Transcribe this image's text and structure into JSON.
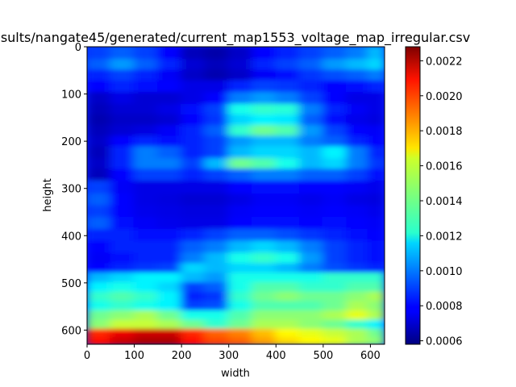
{
  "chart_data": {
    "type": "heatmap",
    "title": "sults/nangate45/generated/current_map1553_voltage_map_irregular.csv",
    "xlabel": "width",
    "ylabel": "height",
    "xlim": [
      0,
      630
    ],
    "ylim": [
      630,
      0
    ],
    "x_ticks": [
      "0",
      "100",
      "200",
      "300",
      "400",
      "500",
      "600"
    ],
    "y_ticks": [
      "0",
      "100",
      "200",
      "300",
      "400",
      "500",
      "600"
    ],
    "colormap": "jet",
    "colorbar": {
      "min": 0.00058,
      "max": 0.00228,
      "ticks": [
        "0.0006",
        "0.0008",
        "0.0010",
        "0.0012",
        "0.0014",
        "0.0016",
        "0.0018",
        "0.0020",
        "0.0022"
      ]
    },
    "grid": false,
    "x_centers": [
      25,
      75,
      125,
      175,
      225,
      275,
      325,
      375,
      425,
      475,
      525,
      575,
      615
    ],
    "y_centers": [
      15,
      40,
      60,
      85,
      110,
      135,
      155,
      180,
      200,
      225,
      250,
      270,
      300,
      325,
      350,
      375,
      400,
      425,
      450,
      470,
      490,
      510,
      530,
      550,
      570,
      590,
      608,
      624
    ],
    "values": [
      [
        0.0009,
        0.00095,
        0.0009,
        0.0008,
        0.00068,
        0.00065,
        0.0007,
        0.0008,
        0.00085,
        0.0009,
        0.00095,
        0.001,
        0.0011
      ],
      [
        0.00095,
        0.00105,
        0.00095,
        0.00085,
        0.00072,
        0.00068,
        0.00072,
        0.00085,
        0.0009,
        0.00095,
        0.00105,
        0.0011,
        0.00115
      ],
      [
        0.00085,
        0.0009,
        0.00085,
        0.00078,
        0.0007,
        0.00066,
        0.0007,
        0.00078,
        0.00082,
        0.00088,
        0.00092,
        0.00095,
        0.001
      ],
      [
        0.0008,
        0.00085,
        0.00082,
        0.0008,
        0.00075,
        0.00075,
        0.00085,
        0.0009,
        0.00088,
        0.00085,
        0.0008,
        0.00082,
        0.00085
      ],
      [
        0.0007,
        0.00075,
        0.00072,
        0.00072,
        0.00075,
        0.0008,
        0.001,
        0.00105,
        0.001,
        0.0009,
        0.0008,
        0.00075,
        0.00075
      ],
      [
        0.00068,
        0.00072,
        0.00072,
        0.00075,
        0.00082,
        0.0009,
        0.00125,
        0.0013,
        0.00128,
        0.001,
        0.00085,
        0.00078,
        0.00075
      ],
      [
        0.00066,
        0.0007,
        0.0007,
        0.00072,
        0.0008,
        0.00088,
        0.00115,
        0.0012,
        0.00118,
        0.00095,
        0.00082,
        0.00076,
        0.00074
      ],
      [
        0.00068,
        0.00072,
        0.00074,
        0.00078,
        0.00085,
        0.00095,
        0.0013,
        0.0014,
        0.00135,
        0.00105,
        0.0009,
        0.0008,
        0.00078
      ],
      [
        0.0007,
        0.0008,
        0.00085,
        0.00082,
        0.00085,
        0.0009,
        0.00105,
        0.0011,
        0.0011,
        0.001,
        0.00095,
        0.00085,
        0.0008
      ],
      [
        0.00068,
        0.00085,
        0.001,
        0.00095,
        0.00085,
        0.0009,
        0.0011,
        0.00115,
        0.00115,
        0.0011,
        0.0012,
        0.001,
        0.00085
      ],
      [
        0.0007,
        0.00085,
        0.001,
        0.001,
        0.0009,
        0.0011,
        0.0014,
        0.00135,
        0.00125,
        0.0011,
        0.00115,
        0.001,
        0.00088
      ],
      [
        0.00068,
        0.0008,
        0.0009,
        0.0009,
        0.00085,
        0.0009,
        0.00095,
        0.001,
        0.001,
        0.00095,
        0.00095,
        0.0009,
        0.00082
      ],
      [
        0.0009,
        0.00078,
        0.00075,
        0.00075,
        0.00075,
        0.00075,
        0.0008,
        0.00082,
        0.00082,
        0.0008,
        0.0008,
        0.00078,
        0.00076
      ],
      [
        0.00095,
        0.0008,
        0.00075,
        0.00074,
        0.00072,
        0.00072,
        0.00075,
        0.00078,
        0.00078,
        0.00076,
        0.00078,
        0.00075,
        0.00074
      ],
      [
        0.0009,
        0.0008,
        0.00076,
        0.00075,
        0.00074,
        0.00074,
        0.00078,
        0.0008,
        0.0008,
        0.00078,
        0.0008,
        0.00078,
        0.00076
      ],
      [
        0.00095,
        0.00082,
        0.00078,
        0.00076,
        0.00075,
        0.00075,
        0.0008,
        0.00082,
        0.00082,
        0.0008,
        0.00082,
        0.0008,
        0.00078
      ],
      [
        0.00085,
        0.00085,
        0.00082,
        0.00082,
        0.00085,
        0.0009,
        0.00095,
        0.00095,
        0.00092,
        0.00088,
        0.00085,
        0.00082,
        0.0008
      ],
      [
        0.0008,
        0.00085,
        0.00085,
        0.00085,
        0.00095,
        0.001,
        0.0011,
        0.00115,
        0.0011,
        0.001,
        0.0009,
        0.00085,
        0.00082
      ],
      [
        0.00078,
        0.00082,
        0.00085,
        0.00085,
        0.001,
        0.0011,
        0.00125,
        0.0013,
        0.00125,
        0.00105,
        0.0009,
        0.00085,
        0.00082
      ],
      [
        0.0008,
        0.00085,
        0.00088,
        0.0009,
        0.00115,
        0.0011,
        0.00115,
        0.00115,
        0.0011,
        0.001,
        0.00092,
        0.00088,
        0.00085
      ],
      [
        0.0011,
        0.00115,
        0.0012,
        0.0012,
        0.0011,
        0.00105,
        0.00125,
        0.00125,
        0.00125,
        0.00125,
        0.0013,
        0.0013,
        0.0013
      ],
      [
        0.0012,
        0.00125,
        0.0012,
        0.00115,
        0.0009,
        0.00095,
        0.00125,
        0.00135,
        0.00135,
        0.0013,
        0.0013,
        0.00135,
        0.00135
      ],
      [
        0.0013,
        0.00135,
        0.0013,
        0.0012,
        0.00085,
        0.00088,
        0.0013,
        0.0014,
        0.00145,
        0.0014,
        0.0014,
        0.00145,
        0.0015
      ],
      [
        0.00125,
        0.0013,
        0.00125,
        0.0012,
        0.0009,
        0.00092,
        0.00125,
        0.00135,
        0.00135,
        0.00135,
        0.0014,
        0.0015,
        0.00145
      ],
      [
        0.0014,
        0.00145,
        0.0015,
        0.0014,
        0.00125,
        0.00125,
        0.00135,
        0.00145,
        0.00145,
        0.00145,
        0.0015,
        0.0016,
        0.0015
      ],
      [
        0.00145,
        0.00155,
        0.00155,
        0.0015,
        0.0014,
        0.0013,
        0.0014,
        0.0015,
        0.0015,
        0.00145,
        0.0014,
        0.0013,
        0.0012
      ],
      [
        0.002,
        0.0021,
        0.00215,
        0.00215,
        0.002,
        0.0019,
        0.00185,
        0.00175,
        0.00165,
        0.0016,
        0.00155,
        0.0015,
        0.0014
      ],
      [
        0.00205,
        0.00215,
        0.0022,
        0.0022,
        0.00205,
        0.00195,
        0.0019,
        0.0018,
        0.0017,
        0.00165,
        0.0016,
        0.0015,
        0.00145
      ]
    ]
  }
}
